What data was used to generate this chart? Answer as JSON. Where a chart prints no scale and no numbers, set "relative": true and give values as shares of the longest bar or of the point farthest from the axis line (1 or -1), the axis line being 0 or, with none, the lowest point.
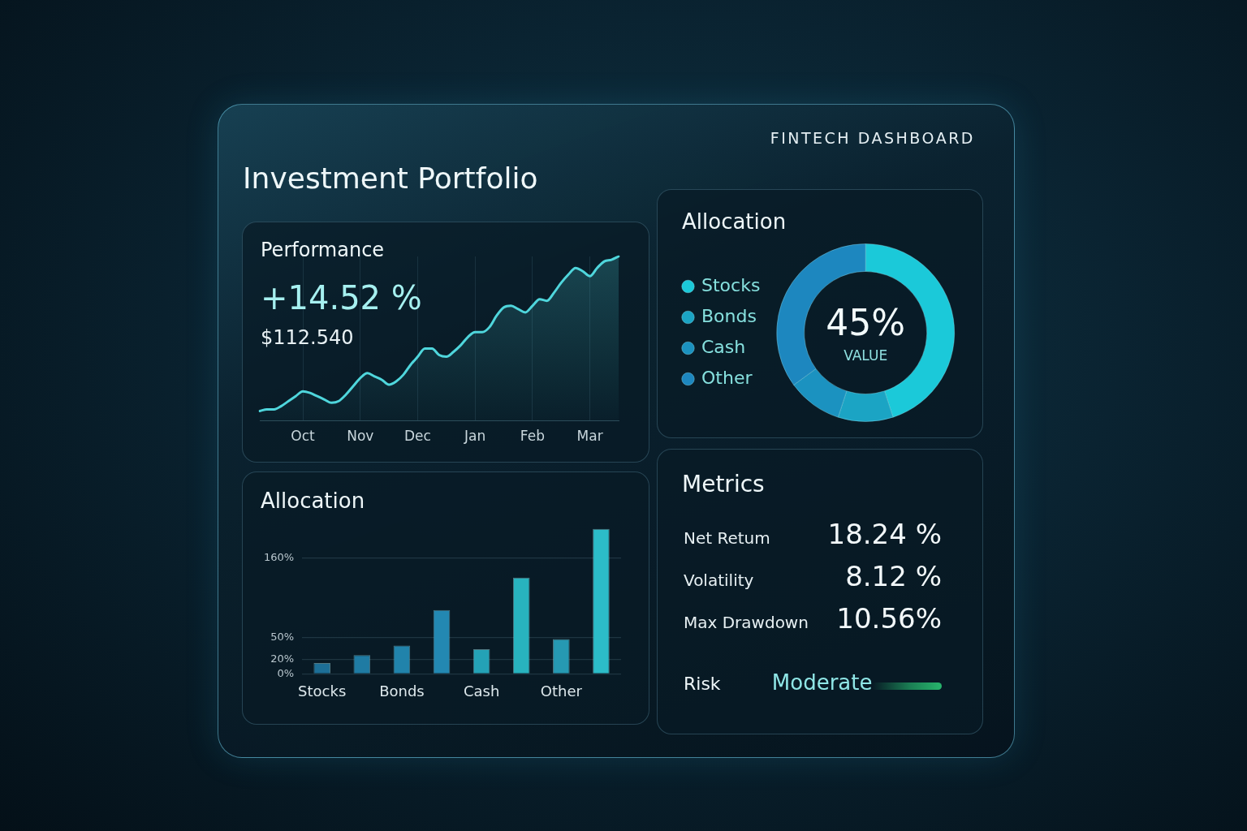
{
  "chart_data": [
    {
      "type": "other",
      "title": "Investment Portfolio",
      "annotations": [
        "FINTECH DASHBOARD"
      ]
    },
    {
      "type": "area",
      "title": "Performance",
      "annotations": [
        "+14.52 %",
        "$112.540"
      ],
      "relative": true,
      "grid": "x",
      "color": "#4fd6dc",
      "categories": [
        null,
        null,
        null,
        null,
        null,
        null,
        "Oct",
        null,
        null,
        null,
        null,
        null,
        null,
        null,
        "Nov",
        null,
        null,
        null,
        null,
        null,
        null,
        null,
        "Dec",
        null,
        null,
        null,
        null,
        null,
        null,
        null,
        "Jan",
        null,
        null,
        null,
        null,
        null,
        null,
        null,
        "Feb",
        null,
        null,
        null,
        null,
        null,
        null,
        null,
        "Mar",
        null,
        null,
        null,
        null
      ],
      "values": [
        0.06,
        0.07,
        0.07,
        0.09,
        0.12,
        0.15,
        0.18,
        0.17,
        0.15,
        0.13,
        0.11,
        0.12,
        0.16,
        0.21,
        0.26,
        0.29,
        0.27,
        0.25,
        0.22,
        0.24,
        0.28,
        0.34,
        0.39,
        0.44,
        0.44,
        0.4,
        0.39,
        0.42,
        0.46,
        0.51,
        0.54,
        0.54,
        0.57,
        0.64,
        0.69,
        0.7,
        0.68,
        0.66,
        0.7,
        0.74,
        0.73,
        0.78,
        0.84,
        0.89,
        0.93,
        0.91,
        0.88,
        0.93,
        0.97,
        0.98,
        1
      ]
    },
    {
      "type": "donut",
      "title": "Allocation",
      "categories": [
        "Stocks",
        "Bonds",
        "Cash",
        "Other"
      ],
      "values": [
        45,
        10,
        10,
        35
      ],
      "colors": [
        "#1bc9d9",
        "#1ba4c4",
        "#1b92c0",
        "#1d87bf"
      ],
      "annotations": [
        "45%",
        "VALUE"
      ],
      "legend": "left"
    },
    {
      "type": "bar",
      "title": "Allocation",
      "categories": [
        "Stocks",
        null,
        "Bonds",
        null,
        "Cash",
        null,
        "Other",
        null
      ],
      "values": [
        15,
        26,
        39,
        88,
        34,
        133,
        48,
        200
      ],
      "colors": [
        "#1d6f97",
        "#1f7ba3",
        "#2183ab",
        "#2388b2",
        "#24a2b6",
        "#28b3be",
        "#2699b2",
        "#2cbcc8"
      ],
      "ylim": [
        0,
        200
      ],
      "yticks": [
        {
          "value": 0,
          "label": "0%"
        },
        {
          "value": 20,
          "label": "20%"
        },
        {
          "value": 50,
          "label": "50%"
        },
        {
          "value": 160,
          "label": "160%"
        }
      ],
      "grid": "y"
    },
    {
      "type": "other",
      "title": "Metrics",
      "annotations": [
        "Net Retum",
        "18.24 %",
        "Volatility",
        "8.12 %",
        "Max Drawdown",
        "10.56%",
        "Risk",
        "Moderate"
      ]
    }
  ]
}
